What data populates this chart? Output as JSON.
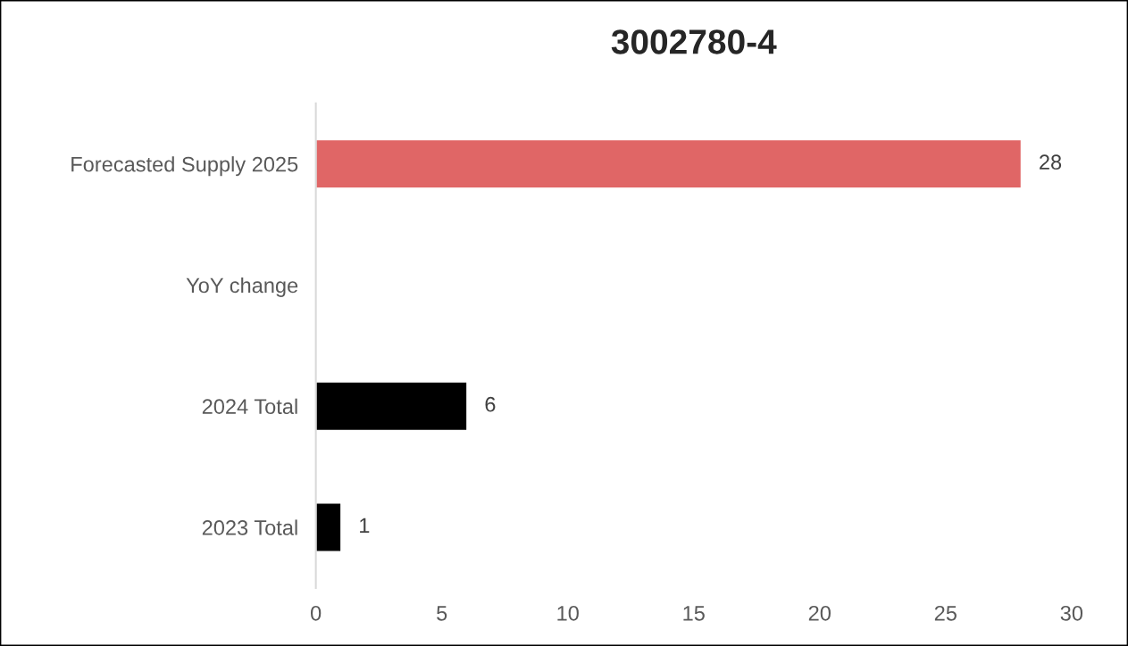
{
  "chart_data": {
    "type": "bar",
    "orientation": "horizontal",
    "title": "3002780-4",
    "categories": [
      "Forecasted Supply 2025",
      "YoY change",
      "2024 Total",
      "2023 Total"
    ],
    "values": [
      28,
      null,
      6,
      1
    ],
    "colors": [
      "#e06666",
      "#000000",
      "#000000",
      "#000000"
    ],
    "value_labels": [
      "28",
      null,
      "6",
      "1"
    ],
    "xlim": [
      0,
      30
    ],
    "xticks": [
      0,
      5,
      10,
      15,
      20,
      25,
      30
    ]
  }
}
